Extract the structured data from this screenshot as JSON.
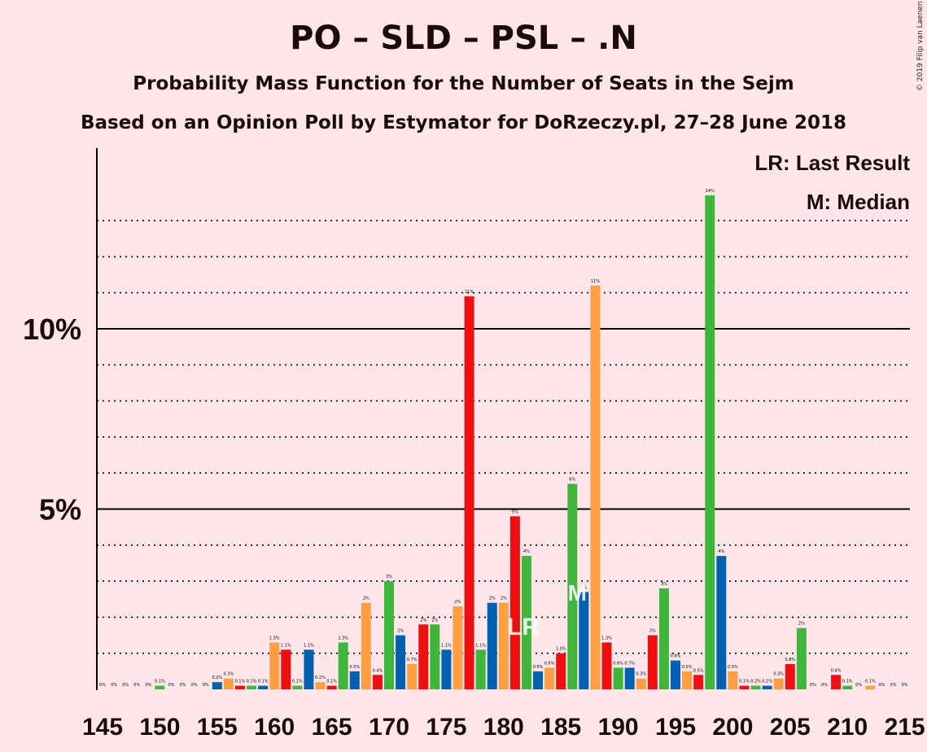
{
  "title": "PO – SLD – PSL – .N",
  "subtitle": "Probability Mass Function for the Number of Seats in the Sejm",
  "source_line": "Based on an Opinion Poll by Estymator for DoRzeczy.pl, 27–28 June 2018",
  "copyright": "© 2019 Filip van Laenen",
  "legend": {
    "lr": "LR: Last Result",
    "m": "M: Median"
  },
  "colors": {
    "background": "#FFE6EA",
    "series": [
      "#0061B0",
      "#FF9F42",
      "#EE1010",
      "#40B53B"
    ]
  },
  "chart_data": {
    "type": "bar",
    "xlim": [
      145,
      215
    ],
    "ylim": [
      0,
      15
    ],
    "ytick_labels": [
      {
        "value": 5,
        "label": "5%"
      },
      {
        "value": 10,
        "label": "10%"
      }
    ],
    "xtick_labels": [
      "145",
      "150",
      "155",
      "160",
      "165",
      "170",
      "175",
      "180",
      "185",
      "190",
      "195",
      "200",
      "205",
      "210",
      "215"
    ],
    "last_result": {
      "seats": 182,
      "label": "LR"
    },
    "median": {
      "seats": 186,
      "label": "M"
    },
    "bars": [
      {
        "x": 145,
        "v": 0.0,
        "t": "0%",
        "c": 2
      },
      {
        "x": 146,
        "v": 0.0,
        "t": "0%",
        "c": 3
      },
      {
        "x": 147,
        "v": 0.0,
        "t": "0%",
        "c": 0
      },
      {
        "x": 148,
        "v": 0.0,
        "t": "0%",
        "c": 1
      },
      {
        "x": 149,
        "v": 0.0,
        "t": "0%",
        "c": 2
      },
      {
        "x": 150,
        "v": 0.1,
        "t": "0.1%",
        "c": 3
      },
      {
        "x": 151,
        "v": 0.0,
        "t": "0%",
        "c": 0
      },
      {
        "x": 152,
        "v": 0.0,
        "t": "0%",
        "c": 1
      },
      {
        "x": 153,
        "v": 0.0,
        "t": "0%",
        "c": 2
      },
      {
        "x": 154,
        "v": 0.0,
        "t": "0%",
        "c": 3
      },
      {
        "x": 155,
        "v": 0.2,
        "t": "0.2%",
        "c": 0
      },
      {
        "x": 156,
        "v": 0.3,
        "t": "0.3%",
        "c": 1
      },
      {
        "x": 157,
        "v": 0.1,
        "t": "0.1%",
        "c": 2
      },
      {
        "x": 158,
        "v": 0.1,
        "t": "0.1%",
        "c": 3
      },
      {
        "x": 159,
        "v": 0.1,
        "t": "0.1%",
        "c": 0
      },
      {
        "x": 160,
        "v": 1.3,
        "t": "1.3%",
        "c": 1
      },
      {
        "x": 161,
        "v": 1.1,
        "t": "1.1%",
        "c": 2
      },
      {
        "x": 162,
        "v": 0.1,
        "t": "0.1%",
        "c": 3
      },
      {
        "x": 163,
        "v": 1.1,
        "t": "1.1%",
        "c": 0
      },
      {
        "x": 164,
        "v": 0.2,
        "t": "0.2%",
        "c": 1
      },
      {
        "x": 165,
        "v": 0.1,
        "t": "0.1%",
        "c": 2
      },
      {
        "x": 166,
        "v": 1.3,
        "t": "1.3%",
        "c": 3
      },
      {
        "x": 167,
        "v": 0.5,
        "t": "0.5%",
        "c": 0
      },
      {
        "x": 168,
        "v": 2.4,
        "t": "2%",
        "c": 1
      },
      {
        "x": 169,
        "v": 0.4,
        "t": "0.4%",
        "c": 2
      },
      {
        "x": 170,
        "v": 3.0,
        "t": "3%",
        "c": 3
      },
      {
        "x": 171,
        "v": 1.5,
        "t": "2%",
        "c": 0
      },
      {
        "x": 172,
        "v": 0.7,
        "t": "0.7%",
        "c": 1
      },
      {
        "x": 173,
        "v": 1.8,
        "t": "2%",
        "c": 2
      },
      {
        "x": 174,
        "v": 1.8,
        "t": "2%",
        "c": 3
      },
      {
        "x": 175,
        "v": 1.1,
        "t": "1.1%",
        "c": 0
      },
      {
        "x": 176,
        "v": 2.3,
        "t": "2%",
        "c": 1
      },
      {
        "x": 177,
        "v": 10.9,
        "t": "11%",
        "c": 2
      },
      {
        "x": 178,
        "v": 1.1,
        "t": "1.1%",
        "c": 3
      },
      {
        "x": 179,
        "v": 2.4,
        "t": "2%",
        "c": 0
      },
      {
        "x": 180,
        "v": 2.4,
        "t": "2%",
        "c": 1
      },
      {
        "x": 181,
        "v": 4.8,
        "t": "5%",
        "c": 2
      },
      {
        "x": 182,
        "v": 3.7,
        "t": "4%",
        "c": 3
      },
      {
        "x": 183,
        "v": 0.5,
        "t": "0.5%",
        "c": 0
      },
      {
        "x": 184,
        "v": 0.6,
        "t": "0.6%",
        "c": 1
      },
      {
        "x": 185,
        "v": 1.0,
        "t": "1.0%",
        "c": 2
      },
      {
        "x": 186,
        "v": 5.7,
        "t": "6%",
        "c": 3
      },
      {
        "x": 187,
        "v": 2.7,
        "t": "3%",
        "c": 0
      },
      {
        "x": 188,
        "v": 11.2,
        "t": "11%",
        "c": 1
      },
      {
        "x": 189,
        "v": 1.3,
        "t": "1.3%",
        "c": 2
      },
      {
        "x": 190,
        "v": 0.6,
        "t": "0.6%",
        "c": 3
      },
      {
        "x": 191,
        "v": 0.6,
        "t": "0.7%",
        "c": 0
      },
      {
        "x": 192,
        "v": 0.3,
        "t": "0.3%",
        "c": 1
      },
      {
        "x": 193,
        "v": 1.5,
        "t": "2%",
        "c": 2
      },
      {
        "x": 194,
        "v": 2.8,
        "t": "3%",
        "c": 3
      },
      {
        "x": 195,
        "v": 0.8,
        "t": "0.8%",
        "c": 0
      },
      {
        "x": 196,
        "v": 0.5,
        "t": "0.5%",
        "c": 1
      },
      {
        "x": 197,
        "v": 0.4,
        "t": "0.5%",
        "c": 2
      },
      {
        "x": 198,
        "v": 13.7,
        "t": "14%",
        "c": 3
      },
      {
        "x": 199,
        "v": 3.7,
        "t": "4%",
        "c": 0
      },
      {
        "x": 200,
        "v": 0.5,
        "t": "0.5%",
        "c": 1
      },
      {
        "x": 201,
        "v": 0.1,
        "t": "0.1%",
        "c": 2
      },
      {
        "x": 202,
        "v": 0.1,
        "t": "0.2%",
        "c": 3
      },
      {
        "x": 203,
        "v": 0.1,
        "t": "0.1%",
        "c": 0
      },
      {
        "x": 204,
        "v": 0.3,
        "t": "0.3%",
        "c": 1
      },
      {
        "x": 205,
        "v": 0.7,
        "t": "0.8%",
        "c": 2
      },
      {
        "x": 206,
        "v": 1.7,
        "t": "2%",
        "c": 3
      },
      {
        "x": 207,
        "v": 0.0,
        "t": "0%",
        "c": 0
      },
      {
        "x": 208,
        "v": 0.0,
        "t": "0%",
        "c": 1
      },
      {
        "x": 209,
        "v": 0.4,
        "t": "0.4%",
        "c": 2
      },
      {
        "x": 210,
        "v": 0.1,
        "t": "0.1%",
        "c": 3
      },
      {
        "x": 211,
        "v": 0.0,
        "t": "0%",
        "c": 0
      },
      {
        "x": 212,
        "v": 0.1,
        "t": "0.1%",
        "c": 1
      },
      {
        "x": 213,
        "v": 0.0,
        "t": "0%",
        "c": 2
      },
      {
        "x": 214,
        "v": 0.0,
        "t": "0%",
        "c": 3
      },
      {
        "x": 215,
        "v": 0.0,
        "t": "0%",
        "c": 0
      }
    ]
  }
}
